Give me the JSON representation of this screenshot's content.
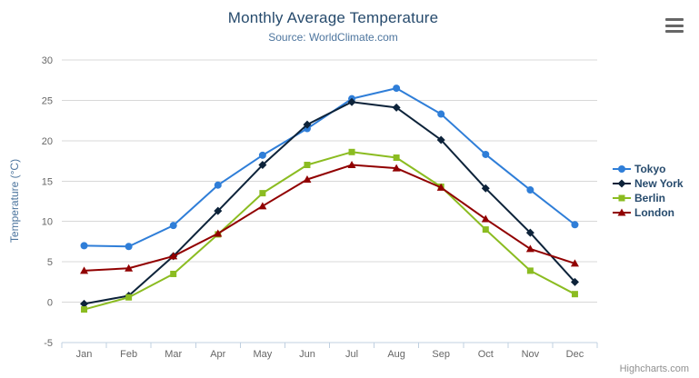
{
  "chart": {
    "title": "Monthly Average Temperature",
    "subtitle": "Source: WorldClimate.com",
    "credits": "Highcharts.com",
    "menu_icon": "hamburger-icon"
  },
  "colors": {
    "title": "#274b6d",
    "subtitle": "#4d759e",
    "axis_labels": "#666666",
    "gridline": "#d8d8d8",
    "axis_line": "#c0d0e0",
    "legend_text": "#274b6d",
    "credits": "#909090"
  },
  "chart_data": {
    "type": "line",
    "title": "Monthly Average Temperature",
    "subtitle": "Source: WorldClimate.com",
    "xlabel": "",
    "ylabel": "Temperature (°C)",
    "categories": [
      "Jan",
      "Feb",
      "Mar",
      "Apr",
      "May",
      "Jun",
      "Jul",
      "Aug",
      "Sep",
      "Oct",
      "Nov",
      "Dec"
    ],
    "series": [
      {
        "name": "Tokyo",
        "color": "#2f7ed8",
        "marker": "circle",
        "values": [
          7.0,
          6.9,
          9.5,
          14.5,
          18.2,
          21.5,
          25.2,
          26.5,
          23.3,
          18.3,
          13.9,
          9.6
        ]
      },
      {
        "name": "New York",
        "color": "#0d233a",
        "marker": "diamond",
        "values": [
          -0.2,
          0.8,
          5.7,
          11.3,
          17.0,
          22.0,
          24.8,
          24.1,
          20.1,
          14.1,
          8.6,
          2.5
        ]
      },
      {
        "name": "Berlin",
        "color": "#8bbc21",
        "marker": "square",
        "values": [
          -0.9,
          0.6,
          3.5,
          8.4,
          13.5,
          17.0,
          18.6,
          17.9,
          14.3,
          9.0,
          3.9,
          1.0
        ]
      },
      {
        "name": "London",
        "color": "#910000",
        "marker": "triangle",
        "values": [
          3.9,
          4.2,
          5.7,
          8.5,
          11.9,
          15.2,
          17.0,
          16.6,
          14.2,
          10.3,
          6.6,
          4.8
        ]
      }
    ],
    "ylim": [
      -5,
      30
    ],
    "yticks": [
      -5,
      0,
      5,
      10,
      15,
      20,
      25,
      30
    ],
    "grid": true,
    "legend_position": "right"
  }
}
